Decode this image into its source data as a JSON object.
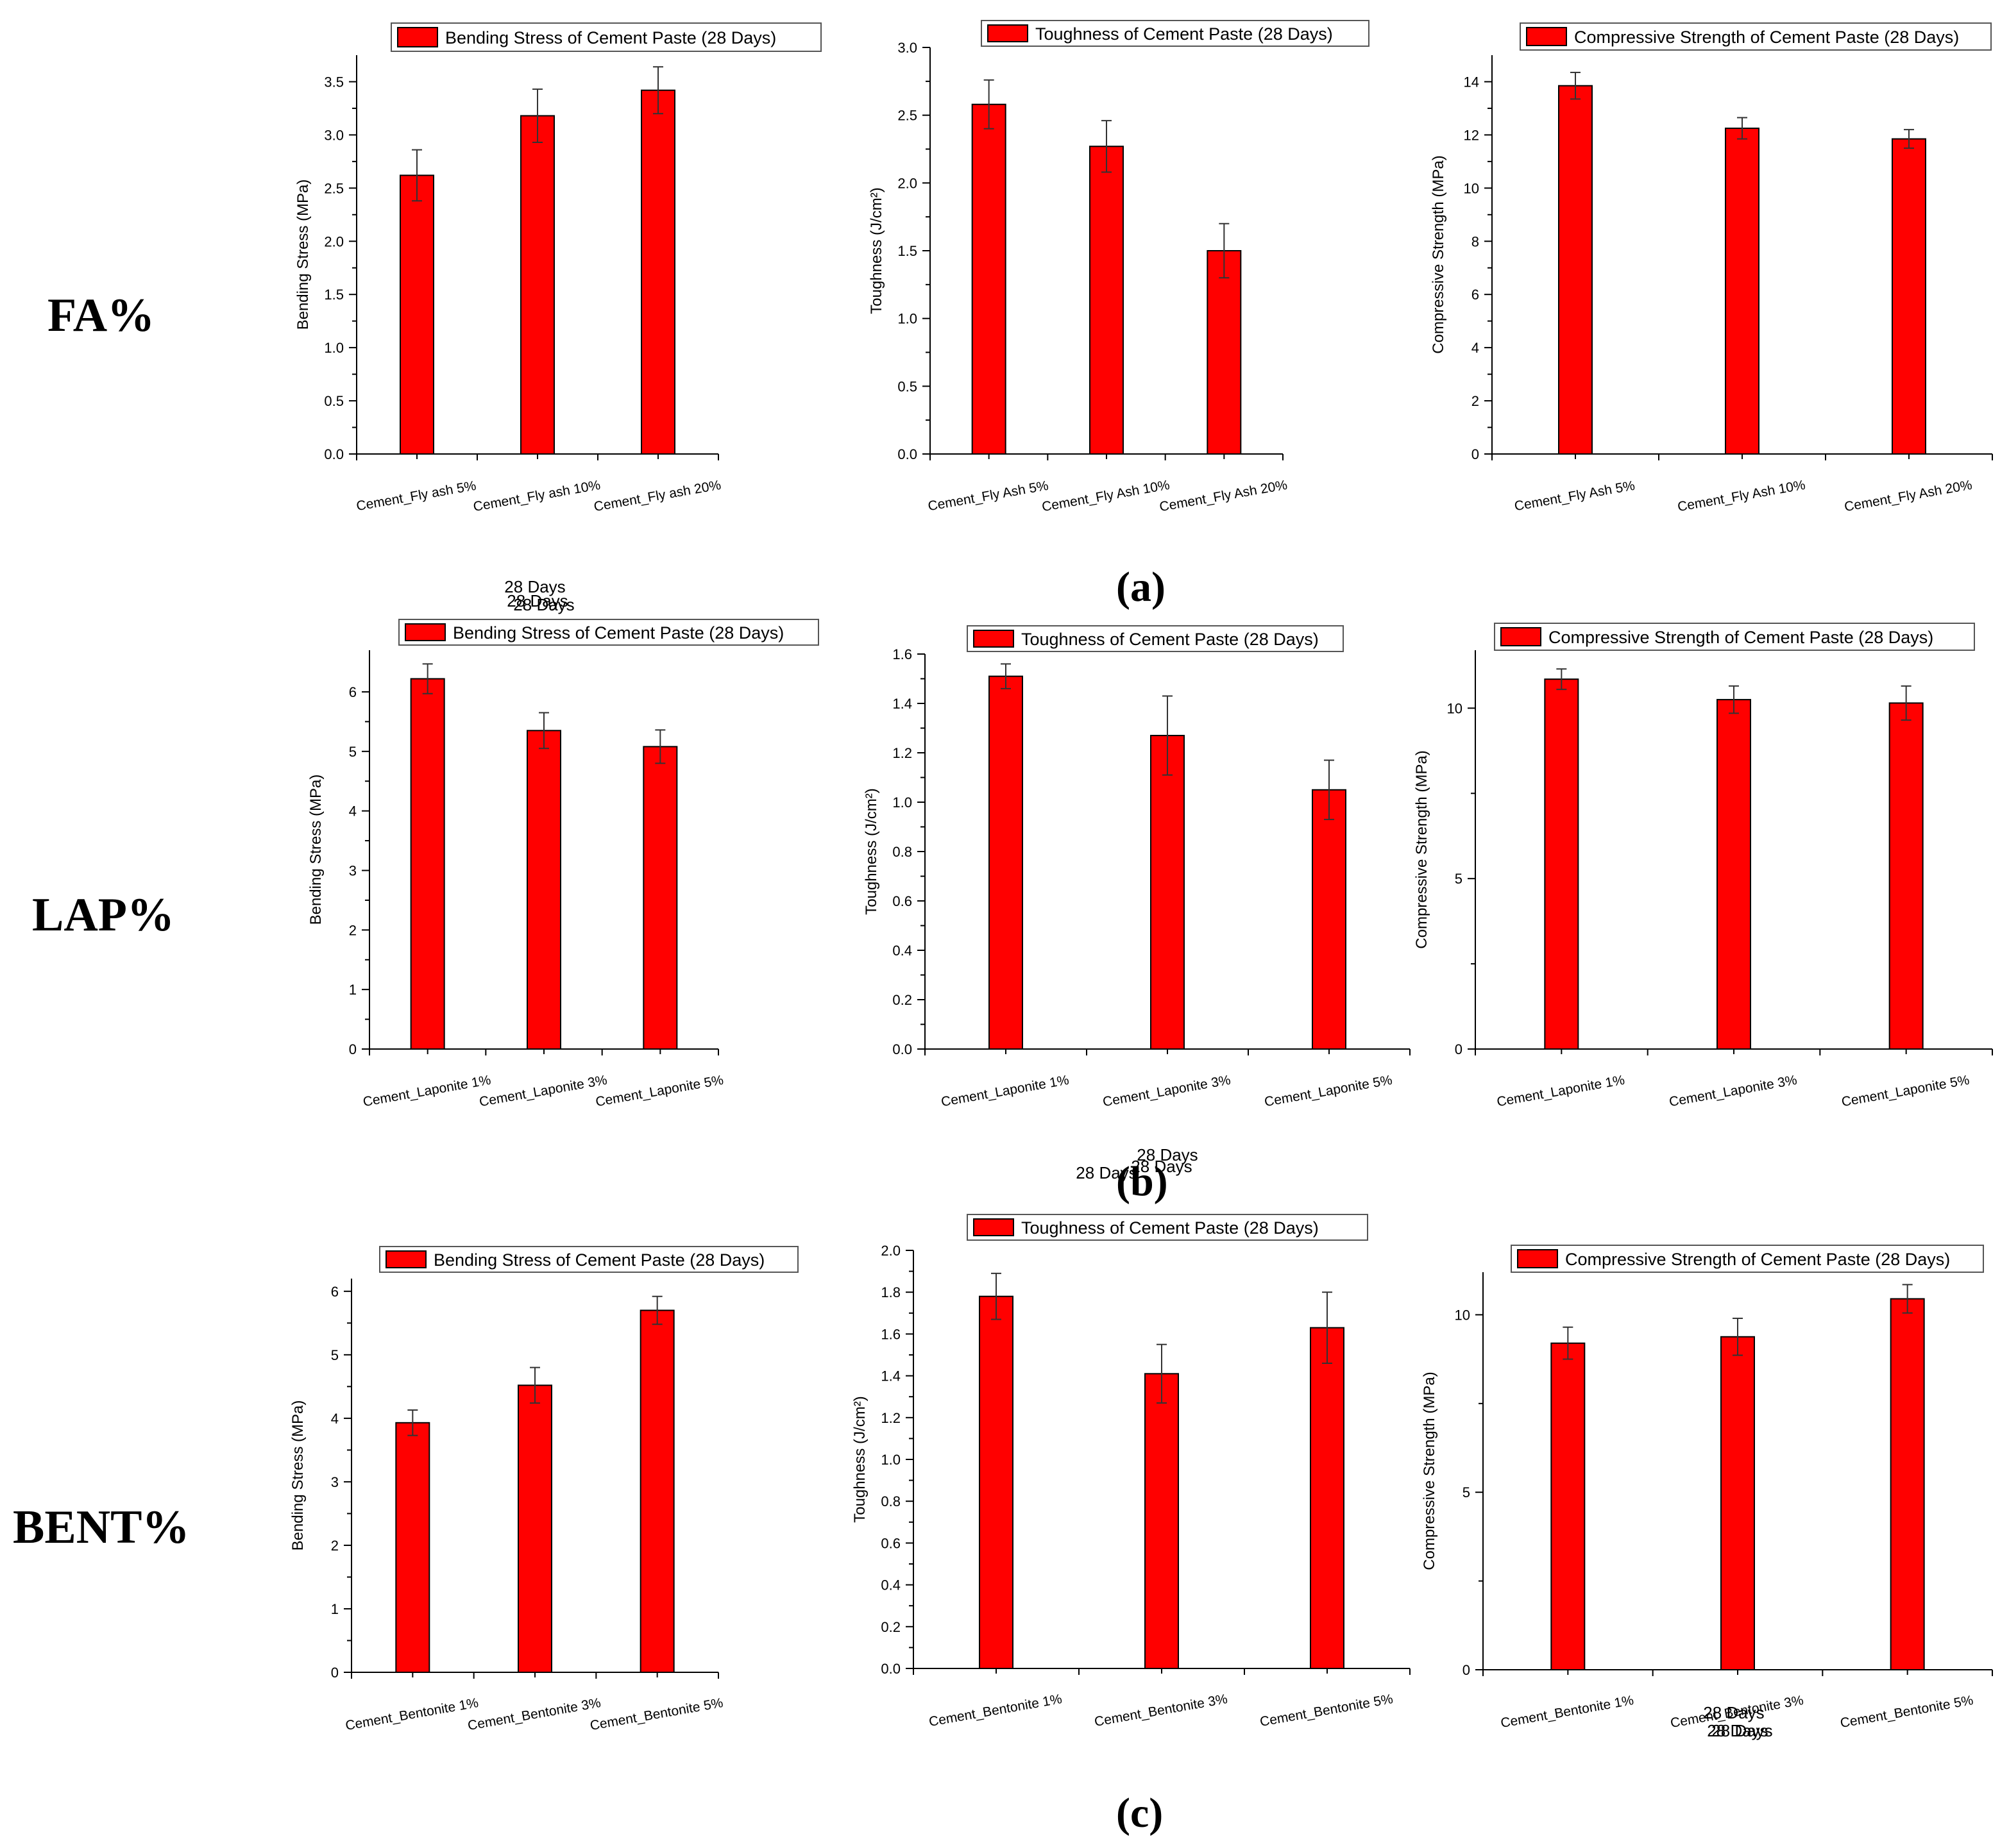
{
  "row_labels": [
    "FA%",
    "LAP%",
    "BENT%"
  ],
  "captions": [
    "(a)",
    "(b)",
    "(c)"
  ],
  "colors": {
    "bar": "#ff0000",
    "outline": "#000000",
    "axis": "#000000"
  },
  "chart_data": [
    {
      "type": "bar",
      "title": "Bending Stress of Cement Paste (28 Days)",
      "xlabel": "28 Days",
      "ylabel": "Bending Stress (MPa)",
      "categories": [
        "Cement_Fly ash 5%",
        "Cement_Fly ash 10%",
        "Cement_Fly ash 20%"
      ],
      "values": [
        2.62,
        3.18,
        3.42
      ],
      "errors": [
        0.24,
        0.25,
        0.22
      ],
      "ylim": [
        0,
        3.75
      ],
      "yticks": [
        0,
        0.5,
        1.0,
        1.5,
        2.0,
        2.5,
        3.0,
        3.5
      ],
      "ytick_labels": [
        "0.0",
        "0.5",
        "1.0",
        "1.5",
        "2.0",
        "2.5",
        "3.0",
        "3.5"
      ]
    },
    {
      "type": "bar",
      "title": "Toughness of Cement Paste (28 Days)",
      "xlabel": "28 Days",
      "ylabel": "Toughness (J/cm²)",
      "categories": [
        "Cement_Fly Ash 5%",
        "Cement_Fly Ash 10%",
        "Cement_Fly Ash 20%"
      ],
      "values": [
        2.58,
        2.27,
        1.5
      ],
      "errors": [
        0.18,
        0.19,
        0.2
      ],
      "ylim": [
        0,
        3.0
      ],
      "yticks": [
        0,
        0.5,
        1.0,
        1.5,
        2.0,
        2.5,
        3.0
      ],
      "ytick_labels": [
        "0.0",
        "0.5",
        "1.0",
        "1.5",
        "2.0",
        "2.5",
        "3.0"
      ]
    },
    {
      "type": "bar",
      "title": "Compressive Strength of Cement Paste (28 Days)",
      "xlabel": "28 Days",
      "ylabel": "Compressive Strength (MPa)",
      "categories": [
        "Cement_Fly Ash 5%",
        "Cement_Fly Ash 10%",
        "Cement_Fly Ash 20%"
      ],
      "values": [
        13.85,
        12.25,
        11.85
      ],
      "errors": [
        0.5,
        0.4,
        0.35
      ],
      "ylim": [
        0,
        15
      ],
      "yticks": [
        0,
        2,
        4,
        6,
        8,
        10,
        12,
        14
      ],
      "ytick_labels": [
        "0",
        "2",
        "4",
        "6",
        "8",
        "10",
        "12",
        "14"
      ]
    },
    {
      "type": "bar",
      "title": "Bending Stress of Cement Paste (28 Days)",
      "xlabel": "28 Days",
      "ylabel": "Bending Stress (MPa)",
      "categories": [
        "Cement_Laponite 1%",
        "Cement_Laponite 3%",
        "Cement_Laponite 5%"
      ],
      "values": [
        6.22,
        5.35,
        5.08
      ],
      "errors": [
        0.25,
        0.3,
        0.28
      ],
      "ylim": [
        0,
        6.7
      ],
      "yticks": [
        0,
        1,
        2,
        3,
        4,
        5,
        6
      ],
      "ytick_labels": [
        "0",
        "1",
        "2",
        "3",
        "4",
        "5",
        "6"
      ]
    },
    {
      "type": "bar",
      "title": "Toughness of Cement Paste (28 Days)",
      "xlabel": "28 Days",
      "ylabel": "Toughness (J/cm²)",
      "categories": [
        "Cement_Laponite 1%",
        "Cement_Laponite 3%",
        "Cement_Laponite 5%"
      ],
      "values": [
        1.51,
        1.27,
        1.05
      ],
      "errors": [
        0.05,
        0.16,
        0.12
      ],
      "ylim": [
        0,
        1.6
      ],
      "yticks": [
        0,
        0.2,
        0.4,
        0.6,
        0.8,
        1.0,
        1.2,
        1.4,
        1.6
      ],
      "ytick_labels": [
        "0.0",
        "0.2",
        "0.4",
        "0.6",
        "0.8",
        "1.0",
        "1.2",
        "1.4",
        "1.6"
      ]
    },
    {
      "type": "bar",
      "title": "Compressive Strength of Cement Paste (28 Days)",
      "xlabel": "28 Days",
      "ylabel": "Compressive Strength (MPa)",
      "categories": [
        "Cement_Laponite 1%",
        "Cement_Laponite 3%",
        "Cement_Laponite 5%"
      ],
      "values": [
        10.85,
        10.25,
        10.15
      ],
      "errors": [
        0.3,
        0.4,
        0.5
      ],
      "ylim": [
        0,
        11.7
      ],
      "yticks": [
        0,
        5,
        10
      ],
      "ytick_labels": [
        "0",
        "5",
        "10"
      ]
    },
    {
      "type": "bar",
      "title": "Bending Stress of Cement Paste (28 Days)",
      "xlabel": "28 Days",
      "ylabel": "Bending Stress (MPa)",
      "categories": [
        "Cement_Bentonite 1%",
        "Cement_Bentonite 3%",
        "Cement_Bentonite 5%"
      ],
      "values": [
        3.93,
        4.52,
        5.7
      ],
      "errors": [
        0.2,
        0.28,
        0.22
      ],
      "ylim": [
        0,
        6.2
      ],
      "yticks": [
        0,
        1,
        2,
        3,
        4,
        5,
        6
      ],
      "ytick_labels": [
        "0",
        "1",
        "2",
        "3",
        "4",
        "5",
        "6"
      ]
    },
    {
      "type": "bar",
      "title": "Toughness of Cement Paste (28 Days)",
      "xlabel": "28 Days",
      "ylabel": "Toughness (J/cm²)",
      "categories": [
        "Cement_Bentonite 1%",
        "Cement_Bentonite 3%",
        "Cement_Bentonite 5%"
      ],
      "values": [
        1.78,
        1.41,
        1.63
      ],
      "errors": [
        0.11,
        0.14,
        0.17
      ],
      "ylim": [
        0,
        2.0
      ],
      "yticks": [
        0,
        0.2,
        0.4,
        0.6,
        0.8,
        1.0,
        1.2,
        1.4,
        1.6,
        1.8,
        2.0
      ],
      "ytick_labels": [
        "0.0",
        "0.2",
        "0.4",
        "0.6",
        "0.8",
        "1.0",
        "1.2",
        "1.4",
        "1.6",
        "1.8",
        "2.0"
      ]
    },
    {
      "type": "bar",
      "title": "Compressive Strength of Cement Paste (28 Days)",
      "xlabel": "28 Days",
      "ylabel": "Compressive Strength (MPa)",
      "categories": [
        "Cement_Bentonite 1%",
        "Cement_Bentonite 3%",
        "Cement_Bentonite 5%"
      ],
      "values": [
        9.2,
        9.38,
        10.45
      ],
      "errors": [
        0.45,
        0.52,
        0.4
      ],
      "ylim": [
        0,
        11.2
      ],
      "yticks": [
        0,
        5,
        10
      ],
      "ytick_labels": [
        "0",
        "5",
        "10"
      ]
    }
  ]
}
